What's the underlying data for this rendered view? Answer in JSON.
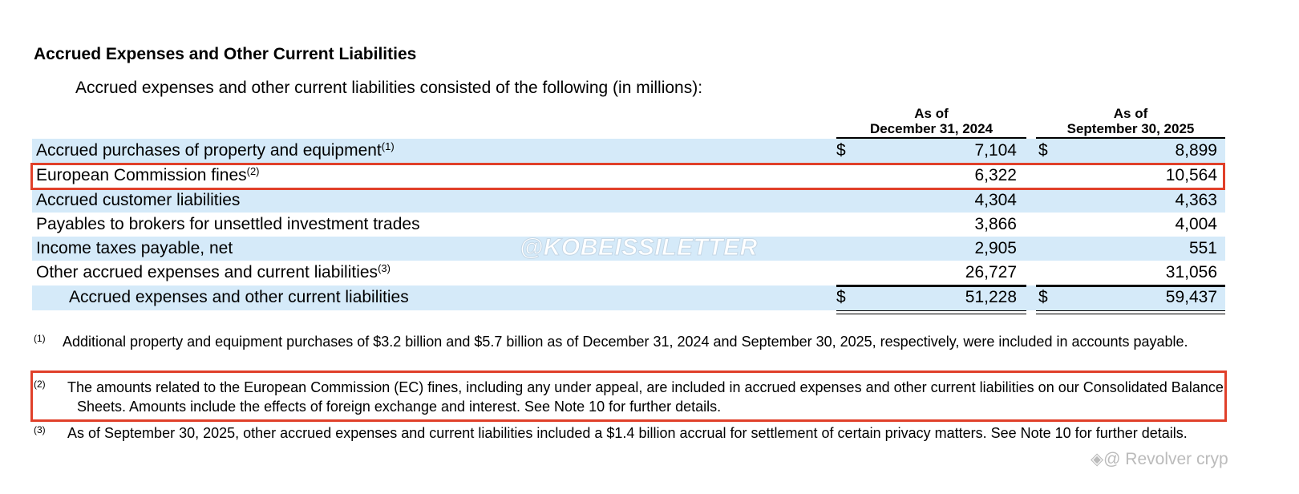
{
  "heading": "Accrued Expenses and Other Current Liabilities",
  "intro": "Accrued expenses and other current liabilities consisted of the following (in millions):",
  "columns": [
    {
      "line1": "As of",
      "line2": "December 31, 2024"
    },
    {
      "line1": "As of",
      "line2": "September 30, 2025"
    }
  ],
  "rows": [
    {
      "label": "Accrued purchases of property and equipment",
      "note": "(1)",
      "d1": "$",
      "v1": "7,104",
      "d2": "$",
      "v2": "8,899"
    },
    {
      "label": "European Commission fines",
      "note": "(2)",
      "d1": "",
      "v1": "6,322",
      "d2": "",
      "v2": "10,564"
    },
    {
      "label": "Accrued customer liabilities",
      "note": "",
      "d1": "",
      "v1": "4,304",
      "d2": "",
      "v2": "4,363"
    },
    {
      "label": "Payables to brokers for unsettled investment trades",
      "note": "",
      "d1": "",
      "v1": "3,866",
      "d2": "",
      "v2": "4,004"
    },
    {
      "label": "Income taxes payable, net",
      "note": "",
      "d1": "",
      "v1": "2,905",
      "d2": "",
      "v2": "551"
    },
    {
      "label": "Other accrued expenses and current liabilities",
      "note": "(3)",
      "d1": "",
      "v1": "26,727",
      "d2": "",
      "v2": "31,056"
    },
    {
      "label": "Accrued expenses and other current liabilities",
      "note": "",
      "d1": "$",
      "v1": "51,228",
      "d2": "$",
      "v2": "59,437"
    }
  ],
  "footnotes": [
    {
      "num": "(1)",
      "text": "Additional property and equipment purchases of $3.2 billion and $5.7 billion as of December 31, 2024 and September 30, 2025, respectively, were included in accounts payable."
    },
    {
      "num": "(2)",
      "text": "The amounts related to the European Commission (EC) fines, including any under appeal, are included in accrued expenses and other current liabilities on our Consolidated Balance Sheets. Amounts include the effects of foreign exchange and interest. See Note 10 for further details."
    },
    {
      "num": "(3)",
      "text": "As of September 30, 2025, other accrued expenses and current liabilities included a $1.4 billion accrual for settlement of certain privacy matters. See Note 10 for further details."
    }
  ],
  "watermark": "@KOBEISSILETTER",
  "watermark2": "@ Revolver cryp",
  "highlight_color": "#e0402a",
  "row_shade": "#d5eaf9"
}
